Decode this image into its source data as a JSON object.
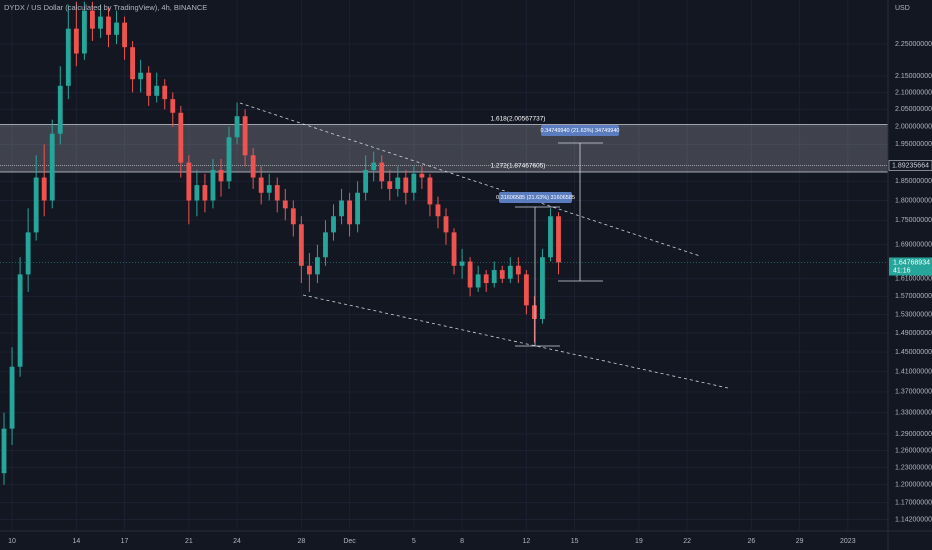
{
  "chart_data": {
    "type": "candlestick",
    "title": "DYDX / US Dollar (calculated by TradingView), 4h, BINANCE",
    "y_axis_label": "USD",
    "log_scale": true,
    "up_color": "#26a69a",
    "down_color": "#ef5350",
    "xlim": [
      -0.5,
      110
    ],
    "ylim": [
      1.125,
      2.396
    ],
    "xticks": [
      {
        "value": 1,
        "label": "10"
      },
      {
        "value": 9,
        "label": "14"
      },
      {
        "value": 15,
        "label": "17"
      },
      {
        "value": 23,
        "label": "21"
      },
      {
        "value": 29,
        "label": "24"
      },
      {
        "value": 37,
        "label": "28"
      },
      {
        "value": 43,
        "label": "Dec"
      },
      {
        "value": 51,
        "label": "5"
      },
      {
        "value": 57,
        "label": "8"
      },
      {
        "value": 65,
        "label": "12"
      },
      {
        "value": 71,
        "label": "15"
      },
      {
        "value": 79,
        "label": "19"
      },
      {
        "value": 85,
        "label": "22"
      },
      {
        "value": 93,
        "label": "26"
      },
      {
        "value": 99,
        "label": "29"
      },
      {
        "value": 105,
        "label": "2023"
      }
    ],
    "yticks": [
      {
        "value": 2.25,
        "label": "2.25000000"
      },
      {
        "value": 2.15,
        "label": "2.15000000"
      },
      {
        "value": 2.1,
        "label": "2.10000000"
      },
      {
        "value": 2.05,
        "label": "2.05000000"
      },
      {
        "value": 2.0,
        "label": "2.00000000"
      },
      {
        "value": 1.95,
        "label": "1.95000000"
      },
      {
        "value": 1.85,
        "label": "1.85000000"
      },
      {
        "value": 1.8,
        "label": "1.80000000"
      },
      {
        "value": 1.75,
        "label": "1.75000000"
      },
      {
        "value": 1.69,
        "label": "1.69000000"
      },
      {
        "value": 1.61,
        "label": "1.61000000"
      },
      {
        "value": 1.57,
        "label": "1.57000000"
      },
      {
        "value": 1.53,
        "label": "1.53000000"
      },
      {
        "value": 1.49,
        "label": "1.49000000"
      },
      {
        "value": 1.45,
        "label": "1.45000000"
      },
      {
        "value": 1.41,
        "label": "1.41000000"
      },
      {
        "value": 1.37,
        "label": "1.37000000"
      },
      {
        "value": 1.33,
        "label": "1.33000000"
      },
      {
        "value": 1.29,
        "label": "1.29000000"
      },
      {
        "value": 1.26,
        "label": "1.26000000"
      },
      {
        "value": 1.23,
        "label": "1.23000000"
      },
      {
        "value": 1.2,
        "label": "1.20000000"
      },
      {
        "value": 1.17,
        "label": "1.17000000"
      },
      {
        "value": 1.142,
        "label": "1.14200000"
      }
    ],
    "open": [
      1.22,
      1.3,
      1.42,
      1.62,
      1.72,
      1.86,
      1.8,
      1.98,
      2.12,
      2.3,
      2.22,
      2.36,
      2.3,
      2.34,
      2.28,
      2.32,
      2.24,
      2.14,
      2.16,
      2.09,
      2.12,
      2.08,
      2.04,
      1.9,
      1.8,
      1.84,
      1.8,
      1.88,
      1.85,
      1.97,
      2.03,
      1.92,
      1.86,
      1.82,
      1.84,
      1.8,
      1.78,
      1.74,
      1.64,
      1.62,
      1.66,
      1.72,
      1.76,
      1.8,
      1.74,
      1.82,
      1.88,
      1.9,
      1.85,
      1.83,
      1.86,
      1.82,
      1.87,
      1.86,
      1.79,
      1.76,
      1.72,
      1.64,
      1.65,
      1.59,
      1.62,
      1.6,
      1.63,
      1.61,
      1.64,
      1.62,
      1.55,
      1.52,
      1.66,
      1.76
    ],
    "high": [
      1.33,
      1.46,
      1.66,
      1.78,
      1.92,
      1.95,
      2.02,
      2.18,
      2.38,
      2.39,
      2.39,
      2.39,
      2.38,
      2.37,
      2.36,
      2.34,
      2.26,
      2.2,
      2.18,
      2.16,
      2.14,
      2.1,
      2.06,
      1.92,
      1.88,
      1.87,
      1.91,
      1.91,
      2.0,
      2.07,
      2.05,
      1.94,
      1.89,
      1.87,
      1.86,
      1.83,
      1.8,
      1.76,
      1.67,
      1.69,
      1.75,
      1.79,
      1.83,
      1.82,
      1.85,
      1.92,
      1.93,
      1.92,
      1.88,
      1.89,
      1.88,
      1.89,
      1.89,
      1.87,
      1.81,
      1.78,
      1.73,
      1.68,
      1.66,
      1.64,
      1.63,
      1.65,
      1.64,
      1.66,
      1.66,
      1.63,
      1.57,
      1.68,
      1.78,
      1.77
    ],
    "low": [
      1.2,
      1.27,
      1.4,
      1.58,
      1.7,
      1.76,
      1.78,
      1.95,
      2.08,
      2.18,
      2.2,
      2.26,
      2.27,
      2.24,
      2.25,
      2.2,
      2.1,
      2.1,
      2.06,
      2.07,
      2.05,
      2.0,
      1.86,
      1.74,
      1.76,
      1.77,
      1.78,
      1.81,
      1.83,
      1.95,
      1.89,
      1.83,
      1.79,
      1.8,
      1.77,
      1.75,
      1.71,
      1.6,
      1.58,
      1.6,
      1.64,
      1.7,
      1.74,
      1.71,
      1.72,
      1.8,
      1.85,
      1.83,
      1.8,
      1.81,
      1.79,
      1.8,
      1.83,
      1.76,
      1.73,
      1.69,
      1.62,
      1.61,
      1.57,
      1.58,
      1.58,
      1.59,
      1.6,
      1.6,
      1.6,
      1.53,
      1.47,
      1.51,
      1.65,
      1.62
    ],
    "close": [
      1.3,
      1.42,
      1.62,
      1.72,
      1.86,
      1.8,
      1.98,
      2.12,
      2.3,
      2.22,
      2.36,
      2.3,
      2.34,
      2.28,
      2.32,
      2.24,
      2.14,
      2.16,
      2.09,
      2.12,
      2.08,
      2.04,
      1.9,
      1.8,
      1.84,
      1.8,
      1.88,
      1.85,
      1.97,
      2.03,
      1.92,
      1.86,
      1.82,
      1.84,
      1.8,
      1.78,
      1.74,
      1.64,
      1.62,
      1.66,
      1.72,
      1.76,
      1.8,
      1.74,
      1.82,
      1.88,
      1.9,
      1.85,
      1.83,
      1.86,
      1.82,
      1.87,
      1.86,
      1.79,
      1.76,
      1.72,
      1.64,
      1.65,
      1.59,
      1.62,
      1.6,
      1.63,
      1.61,
      1.64,
      1.62,
      1.55,
      1.52,
      1.66,
      1.76,
      1.64768934
    ],
    "fib_levels": [
      {
        "value": 2.00567737,
        "label": "1.618(2.00567737)"
      },
      {
        "value": 1.87467605,
        "label": "1.272(1.87467605)"
      }
    ],
    "price_line": {
      "value": 1.89235664,
      "label": "1.89235664"
    },
    "last_price": {
      "label": "1.64768934",
      "countdown": "41:16"
    },
    "measurements": [
      "0.31606585 (21.63%) 31606585",
      "0.34749940 (21.63%) 34749940"
    ]
  }
}
